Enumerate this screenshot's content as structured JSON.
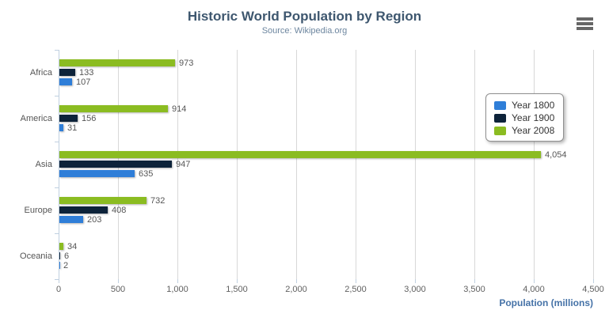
{
  "header": {
    "title": "Historic World Population by Region",
    "subtitle": "Source: Wikipedia.org"
  },
  "export_menu": {
    "icon": "hamburger-icon",
    "tooltip_visible": false
  },
  "styles": {
    "title_color": "#3E576F",
    "subtitle_color": "#6D869F",
    "axis_title_color": "#4572A7",
    "tick_label_color": "#606060",
    "gridline_color": "#d8d8d8",
    "axis_line_color": "#c0d0e0",
    "legend_border_color": "#909090",
    "menu_icon_color": "#666666"
  },
  "chart_data": {
    "type": "bar",
    "orientation": "horizontal",
    "title": "Historic World Population by Region",
    "subtitle": "Source: Wikipedia.org",
    "categories": [
      "Africa",
      "America",
      "Asia",
      "Europe",
      "Oceania"
    ],
    "series": [
      {
        "name": "Year 1800",
        "color": "#2f7ed8",
        "values": [
          107,
          31,
          635,
          203,
          2
        ]
      },
      {
        "name": "Year 1900",
        "color": "#0d233a",
        "values": [
          133,
          156,
          947,
          408,
          6
        ]
      },
      {
        "name": "Year 2008",
        "color": "#8bbc21",
        "values": [
          973,
          914,
          4054,
          732,
          34
        ]
      }
    ],
    "bar_display_order_top_to_bottom": [
      "Year 2008",
      "Year 1900",
      "Year 1800"
    ],
    "data_labels_visible": true,
    "data_label_format": "thousands-comma",
    "xlabel": "Population (millions)",
    "ylabel": "",
    "xlim": [
      0,
      4500
    ],
    "x_tick_step": 500,
    "x_tick_labels": [
      "0",
      "500",
      "1,000",
      "1,500",
      "2,000",
      "2,500",
      "3,000",
      "3,500",
      "4,000",
      "4,500"
    ],
    "grid": true,
    "legend_position": "right-inside",
    "legend_entries": [
      "Year 1800",
      "Year 1900",
      "Year 2008"
    ]
  }
}
